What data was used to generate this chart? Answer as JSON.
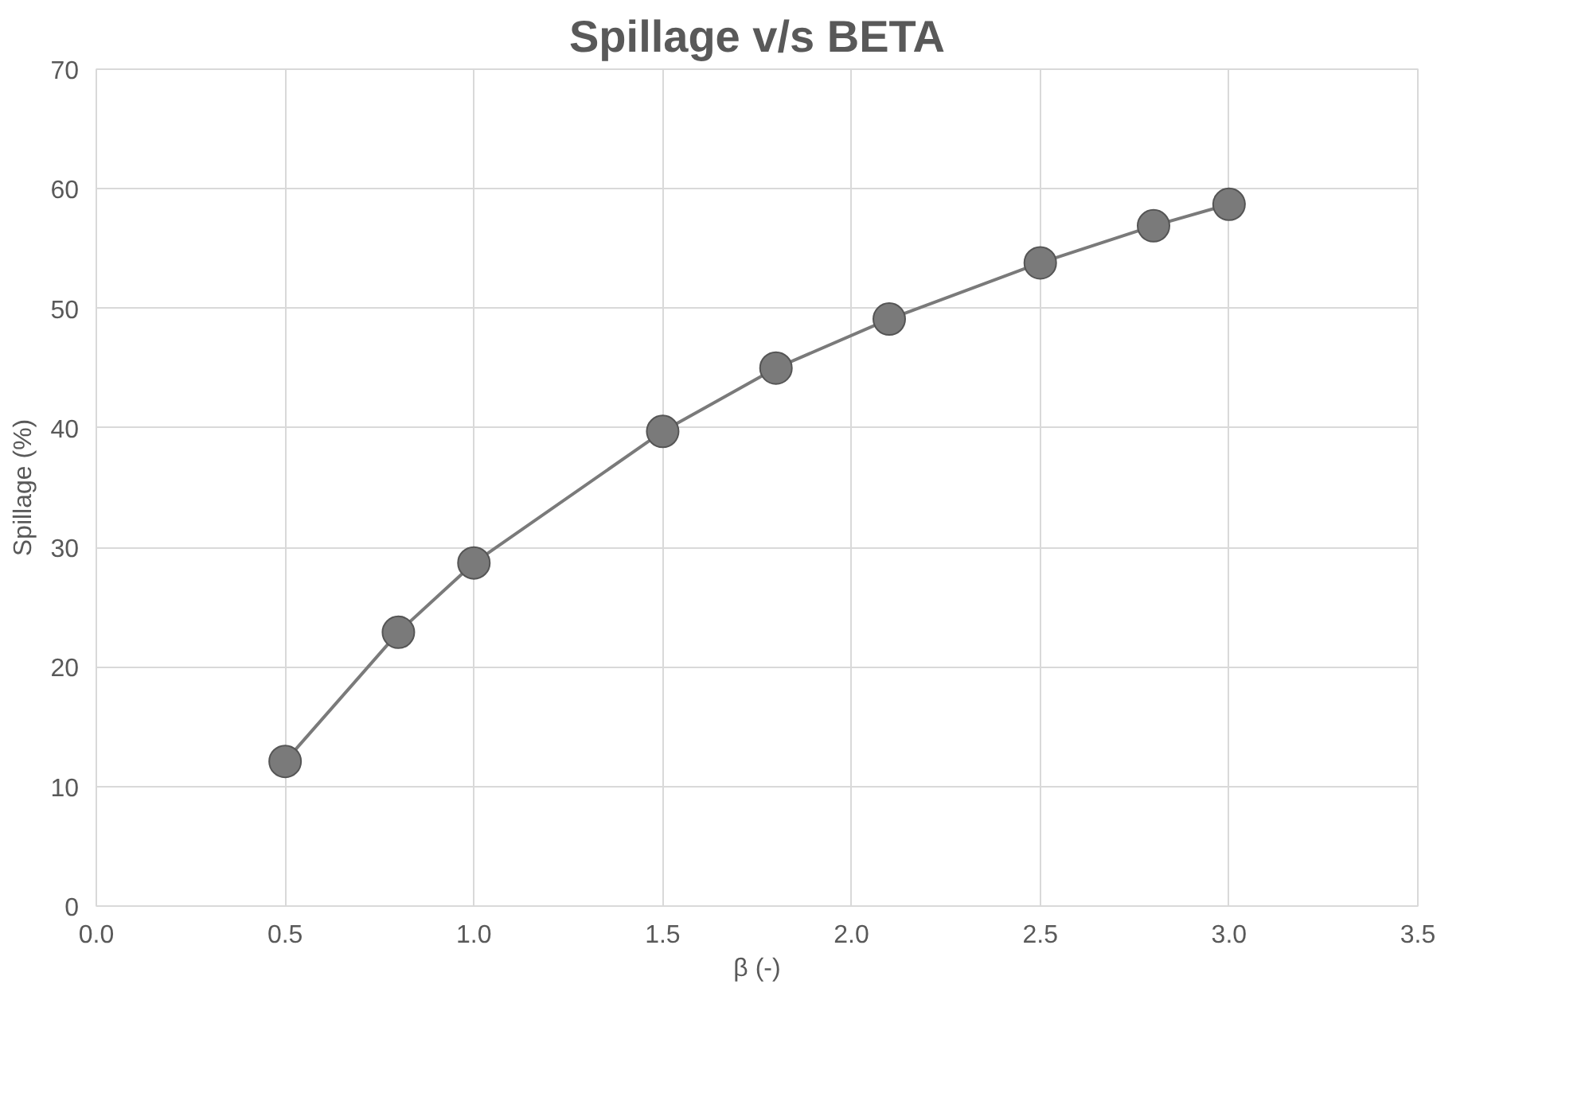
{
  "chart_data": {
    "type": "line",
    "title": "Spillage v/s BETA",
    "xlabel": "β (-)",
    "ylabel": "Spillage (%)",
    "x": [
      0.5,
      0.8,
      1.0,
      1.5,
      1.8,
      2.1,
      2.5,
      2.8,
      3.0
    ],
    "series": [
      {
        "color": "#7a7a7a",
        "values": [
          12.1,
          22.9,
          28.7,
          39.7,
          45.0,
          49.1,
          53.8,
          56.9,
          58.7
        ]
      }
    ],
    "xlim": [
      0,
      3.5
    ],
    "xticks": [
      {
        "value": 0,
        "label": "0.0"
      },
      {
        "value": 0.5,
        "label": "0.5"
      },
      {
        "value": 1,
        "label": "1.0"
      },
      {
        "value": 1.5,
        "label": "1.5"
      },
      {
        "value": 2,
        "label": "2.0"
      },
      {
        "value": 2.5,
        "label": "2.5"
      },
      {
        "value": 3,
        "label": "3.0"
      },
      {
        "value": 3.5,
        "label": "3.5"
      }
    ],
    "ylim": [
      0,
      70
    ],
    "yticks": [
      0,
      10,
      20,
      30,
      40,
      50,
      60,
      70
    ],
    "grid": true,
    "marker": "circle",
    "line_style": "solid"
  }
}
